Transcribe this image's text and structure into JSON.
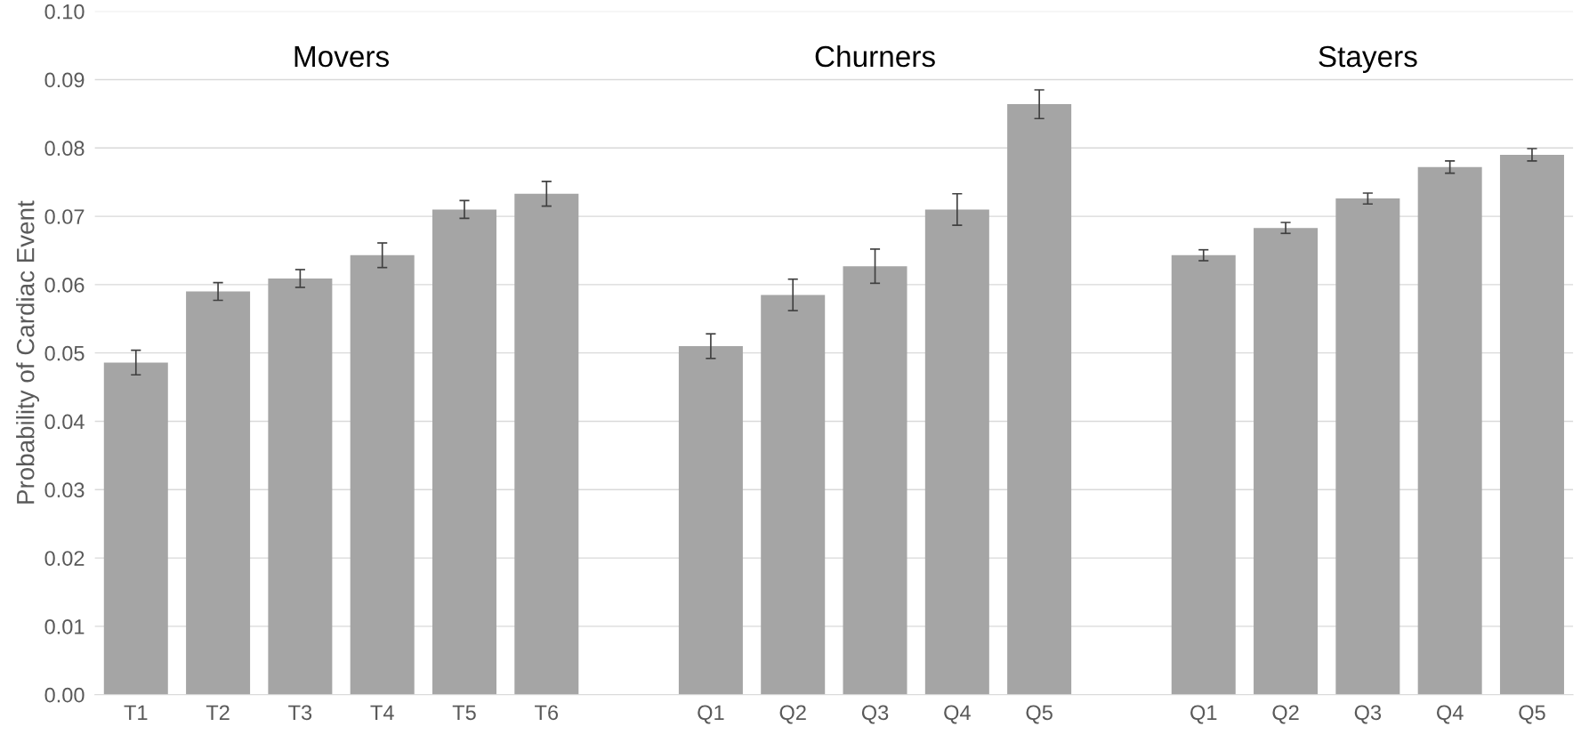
{
  "chart_data": {
    "type": "bar",
    "ylabel": "Probability of Cardiac Event",
    "categories": [
      "T1",
      "T2",
      "T3",
      "T4",
      "T5",
      "T6",
      null,
      "Q1",
      "Q2",
      "Q3",
      "Q4",
      "Q5",
      null,
      "Q1",
      "Q2",
      "Q3",
      "Q4",
      "Q5"
    ],
    "values": [
      0.0486,
      0.059,
      0.0609,
      0.0643,
      0.071,
      0.0733,
      null,
      0.051,
      0.0585,
      0.0627,
      0.071,
      0.0864,
      null,
      0.0643,
      0.0683,
      0.0726,
      0.0772,
      0.079
    ],
    "errors": [
      0.0018,
      0.0013,
      0.0013,
      0.0018,
      0.0013,
      0.0018,
      null,
      0.0018,
      0.0023,
      0.0025,
      0.0023,
      0.0021,
      null,
      0.0008,
      0.0008,
      0.0008,
      0.0009,
      0.0009
    ],
    "color": "#a5a5a5",
    "annotations": [
      "Movers",
      "Churners",
      "Stayers"
    ],
    "ylim": [
      0,
      0.1
    ],
    "yticks": [
      {
        "value": 0,
        "label": "0.00"
      },
      {
        "value": 0.01,
        "label": "0.01"
      },
      {
        "value": 0.02,
        "label": "0.02"
      },
      {
        "value": 0.03,
        "label": "0.03"
      },
      {
        "value": 0.04,
        "label": "0.04"
      },
      {
        "value": 0.05,
        "label": "0.05"
      },
      {
        "value": 0.06,
        "label": "0.06"
      },
      {
        "value": 0.07,
        "label": "0.07"
      },
      {
        "value": 0.08,
        "label": "0.08"
      },
      {
        "value": 0.09,
        "label": "0.09"
      },
      {
        "value": 0.1,
        "label": "0.10"
      }
    ],
    "grid": "y"
  }
}
